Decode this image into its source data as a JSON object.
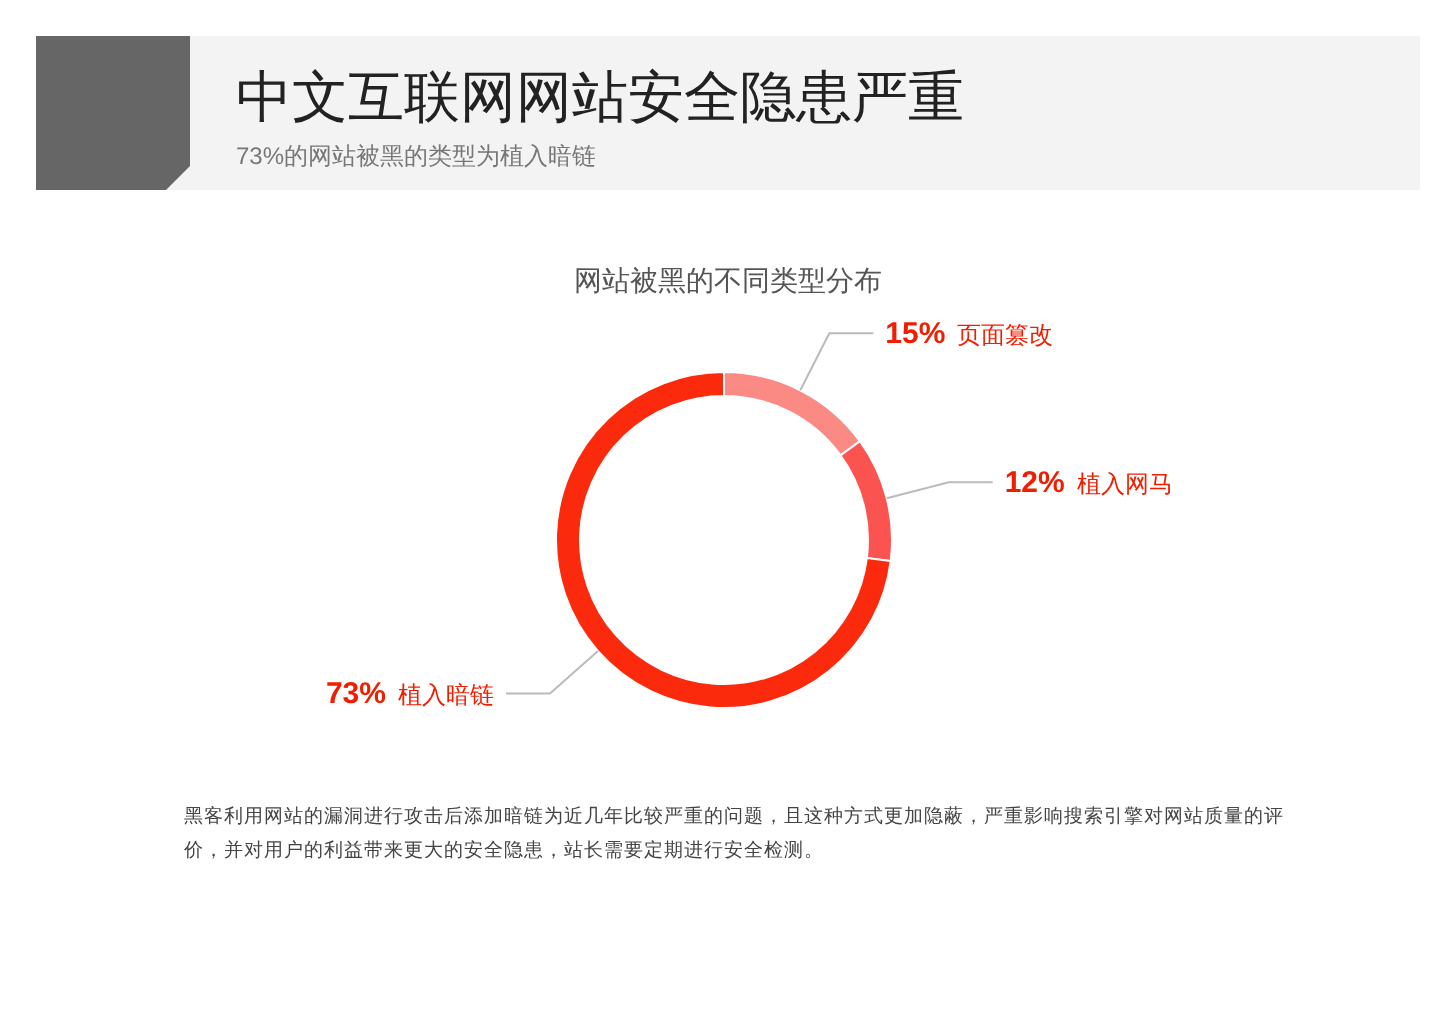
{
  "chart_data": {
    "type": "donut",
    "title": "中文互联网网站安全隐患严重",
    "subtitle": "73%的网站被黑的类型为植入暗链",
    "annotations": [
      "网站被黑的不同类型分布",
      "黑客利用网站的漏洞进行攻击后添加暗链为近几年比较严重的问题，且这种方式更加隐蔽，严重影响搜索引擎对网站质量的评价，并对用户的利益带来更大的安全隐患，站长需要定期进行安全检测。"
    ],
    "categories": [
      "页面篡改",
      "植入网马",
      "植入暗链"
    ],
    "values": [
      15,
      12,
      73
    ],
    "colors": [
      "#fb8a85",
      "#fb5450",
      "#fc2a0c"
    ],
    "value_labels": [
      "15%",
      "12%",
      "73%"
    ],
    "legend": false
  }
}
